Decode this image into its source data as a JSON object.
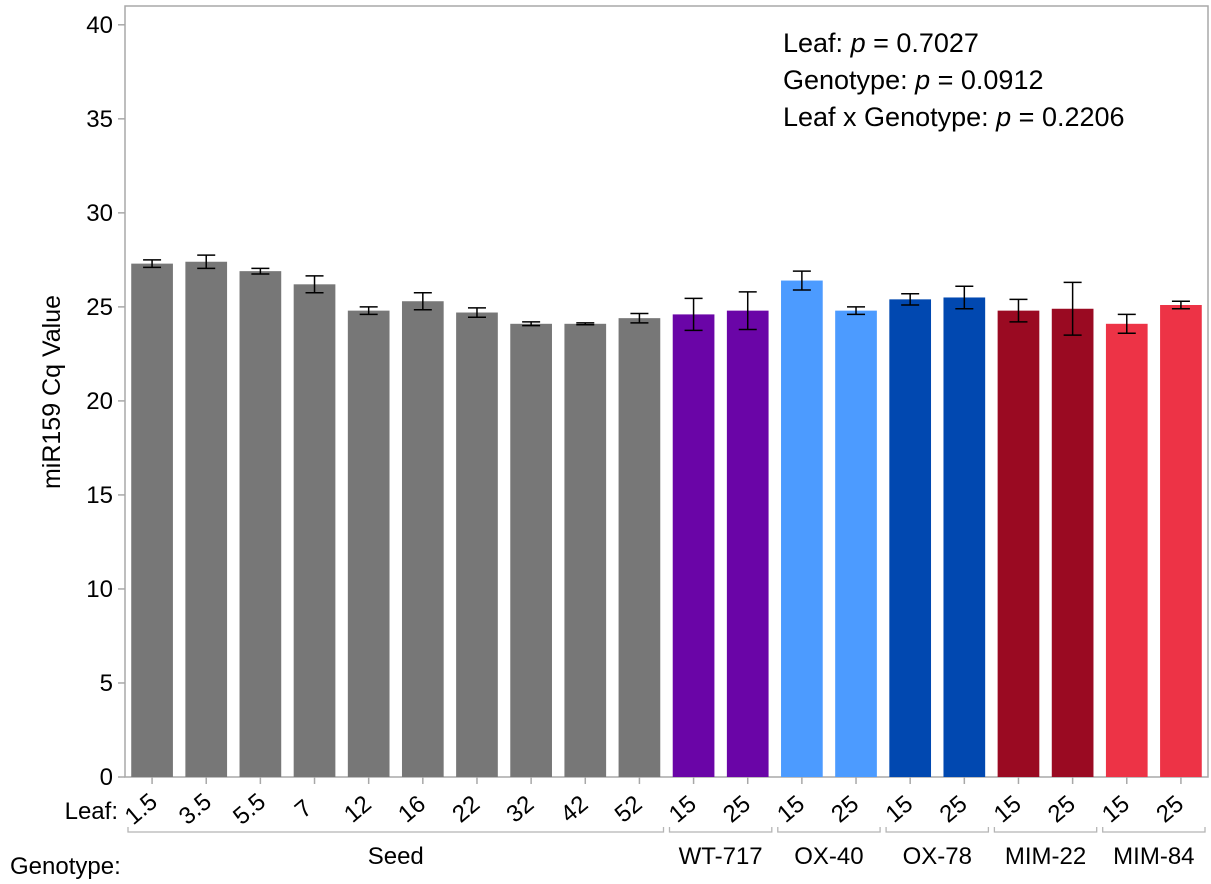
{
  "chart_data": {
    "type": "bar",
    "ylabel": "miR159 Cq Value",
    "ylim": [
      0,
      41
    ],
    "yticks": [
      0,
      5,
      10,
      15,
      20,
      25,
      30,
      35,
      40
    ],
    "grid": false,
    "row_labels": {
      "leaf": "Leaf:",
      "genotype": "Genotype:"
    },
    "annotations": [
      {
        "prefix": "Leaf: ",
        "italic": "p",
        "suffix": " = 0.7027"
      },
      {
        "prefix": "Genotype: ",
        "italic": "p",
        "suffix": " = 0.0912"
      },
      {
        "prefix": "Leaf x Genotype: ",
        "italic": "p",
        "suffix": " = 0.2206"
      }
    ],
    "groups": [
      {
        "name": "Seed",
        "color": "#777777",
        "categories": [
          "1.5",
          "3.5",
          "5.5",
          "7",
          "12",
          "16",
          "22",
          "32",
          "42",
          "52"
        ],
        "values": [
          27.3,
          27.4,
          26.9,
          26.2,
          24.8,
          25.3,
          24.7,
          24.1,
          24.1,
          24.4
        ],
        "errors": [
          0.2,
          0.35,
          0.15,
          0.45,
          0.2,
          0.45,
          0.25,
          0.1,
          0.05,
          0.25
        ]
      },
      {
        "name": "WT-717",
        "color": "#6a05a7",
        "categories": [
          "15",
          "25"
        ],
        "values": [
          24.6,
          24.8
        ],
        "errors": [
          0.85,
          1.0
        ]
      },
      {
        "name": "OX-40",
        "color": "#4c9bff",
        "categories": [
          "15",
          "25"
        ],
        "values": [
          26.4,
          24.8
        ],
        "errors": [
          0.5,
          0.2
        ]
      },
      {
        "name": "OX-78",
        "color": "#0148b0",
        "categories": [
          "15",
          "25"
        ],
        "values": [
          25.4,
          25.5
        ],
        "errors": [
          0.3,
          0.6
        ]
      },
      {
        "name": "MIM-22",
        "color": "#9a0a22",
        "categories": [
          "15",
          "25"
        ],
        "values": [
          24.8,
          24.9
        ],
        "errors": [
          0.6,
          1.4
        ]
      },
      {
        "name": "MIM-84",
        "color": "#ed3346",
        "categories": [
          "15",
          "25"
        ],
        "values": [
          24.1,
          25.1
        ],
        "errors": [
          0.5,
          0.2
        ]
      }
    ]
  }
}
